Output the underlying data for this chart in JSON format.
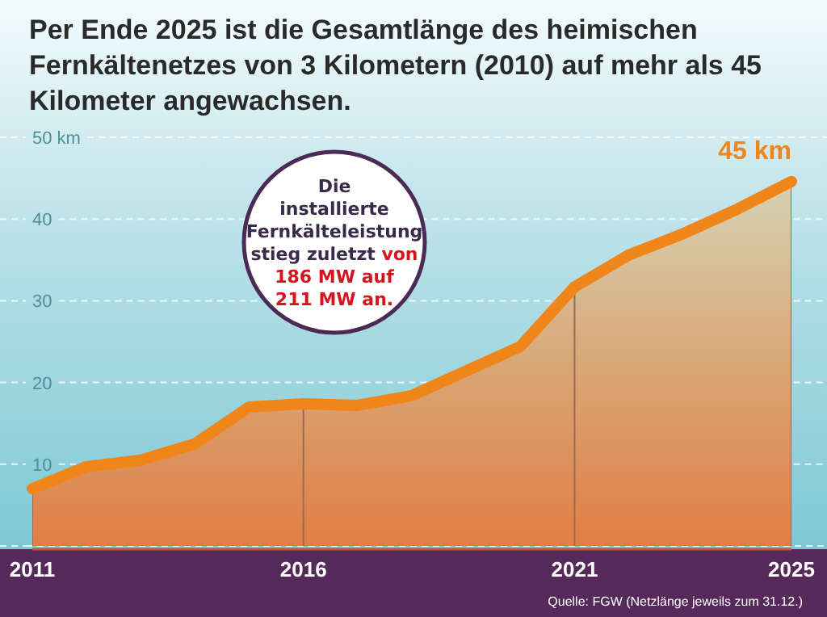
{
  "chart_data": {
    "type": "area",
    "title": "Per Ende 2025 ist die Gesamtlänge des heimischen Fernkältenetzes von 3 Kilometern (2010) auf mehr als 45 Kilometer angewachsen.",
    "x": [
      2011,
      2012,
      2013,
      2014,
      2015,
      2016,
      2017,
      2018,
      2019,
      2020,
      2021,
      2022,
      2023,
      2024,
      2025
    ],
    "series": [
      {
        "color": "#f0861a",
        "values": [
          7,
          9.7,
          10.5,
          12.5,
          17,
          17.4,
          17.2,
          18.4,
          21.4,
          24.4,
          31.7,
          35.6,
          38.2,
          41.2,
          44.6
        ]
      }
    ],
    "xlim": [
      2011,
      2025
    ],
    "xticks": [
      2011,
      2016,
      2021,
      2025
    ],
    "ylim": [
      0,
      50
    ],
    "yticks": [
      {
        "value": 0,
        "label": null
      },
      10,
      20,
      30,
      40,
      {
        "value": 50,
        "label": "50 km"
      }
    ],
    "grid": true,
    "annotations": [
      "Die installierte Fernkälteleistung stieg zuletzt",
      "von 186 MW auf 211 MW an.",
      {
        "text": "45 km",
        "x": 2025,
        "y": 45
      },
      "Quelle: FGW (Netzlänge jeweils zum 31.12.)"
    ]
  }
}
